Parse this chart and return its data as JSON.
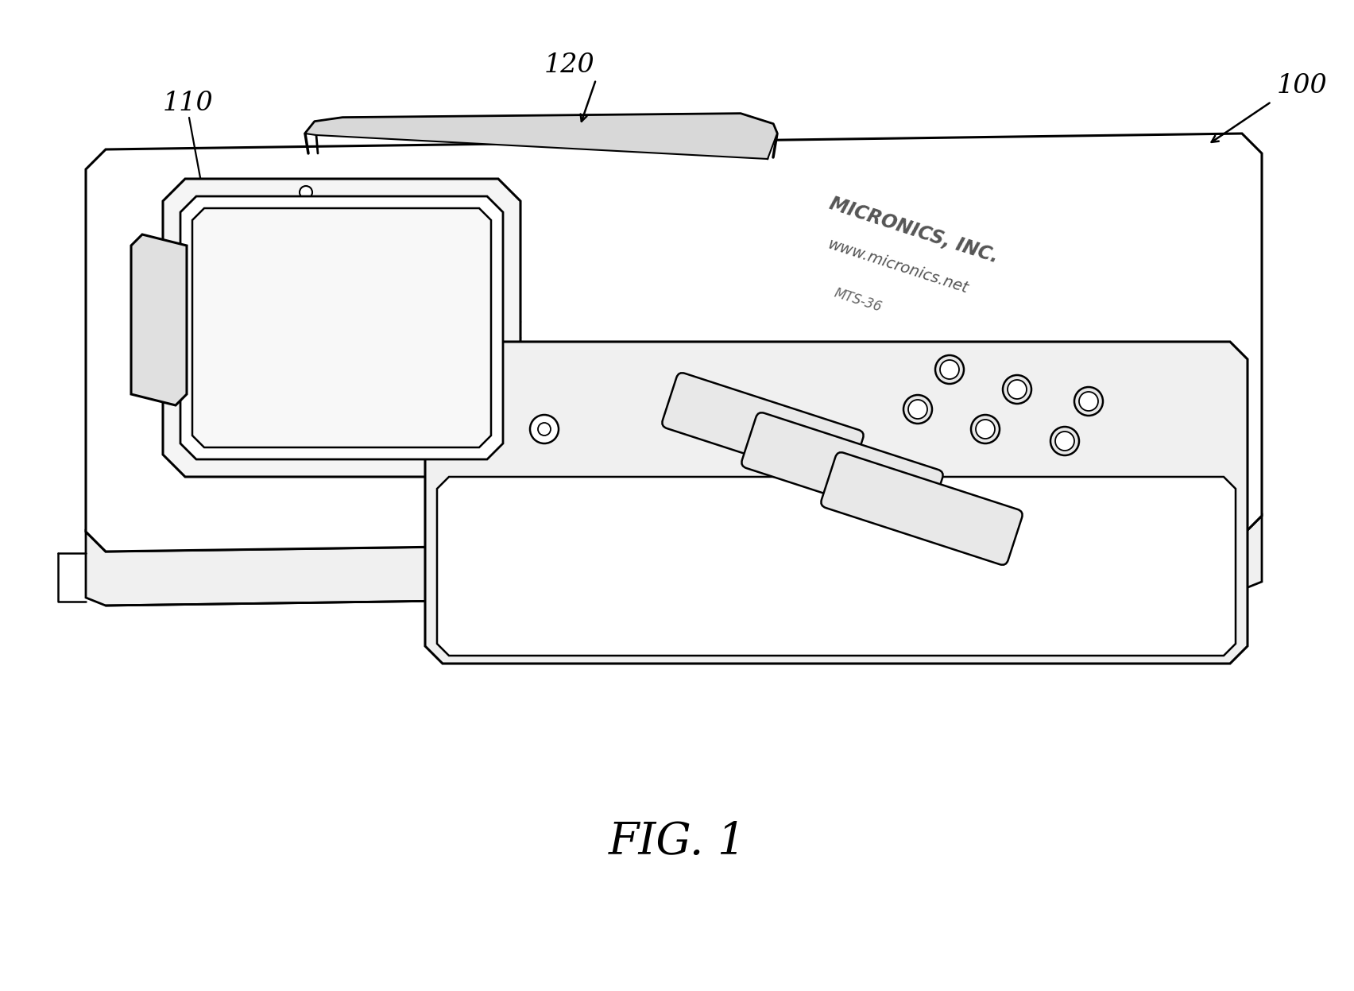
{
  "title": "FIG. 1",
  "bg_color": "#ffffff",
  "line_color": "#000000",
  "fig_width": 17.04,
  "fig_height": 12.47,
  "micronics_text": "MICRONICS, INC.",
  "micronics_web": "www.micronics.net",
  "micronics_model": "MTS-36",
  "label_100": "100",
  "label_110": "110",
  "label_120": "120"
}
